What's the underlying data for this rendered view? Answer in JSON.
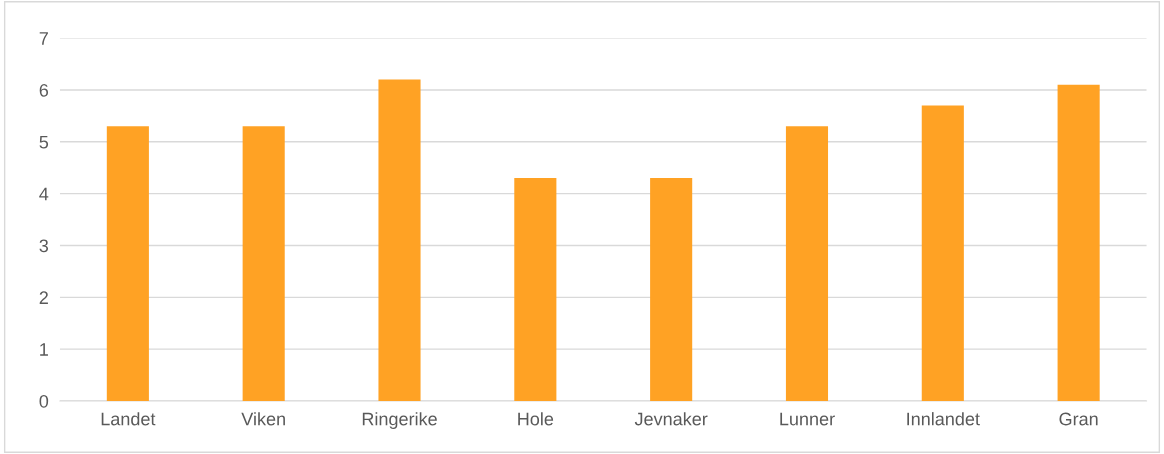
{
  "chart_data": {
    "type": "bar",
    "categories": [
      "Landet",
      "Viken",
      "Ringerike",
      "Hole",
      "Jevnaker",
      "Lunner",
      "Innlandet",
      "Gran"
    ],
    "values": [
      5.3,
      5.3,
      6.2,
      4.3,
      4.3,
      5.3,
      5.7,
      6.1
    ],
    "color": "#ffa224",
    "ylim": [
      0,
      7
    ],
    "yticks": [
      0,
      1,
      2,
      3,
      4,
      5,
      6,
      7
    ],
    "grid": "y"
  }
}
